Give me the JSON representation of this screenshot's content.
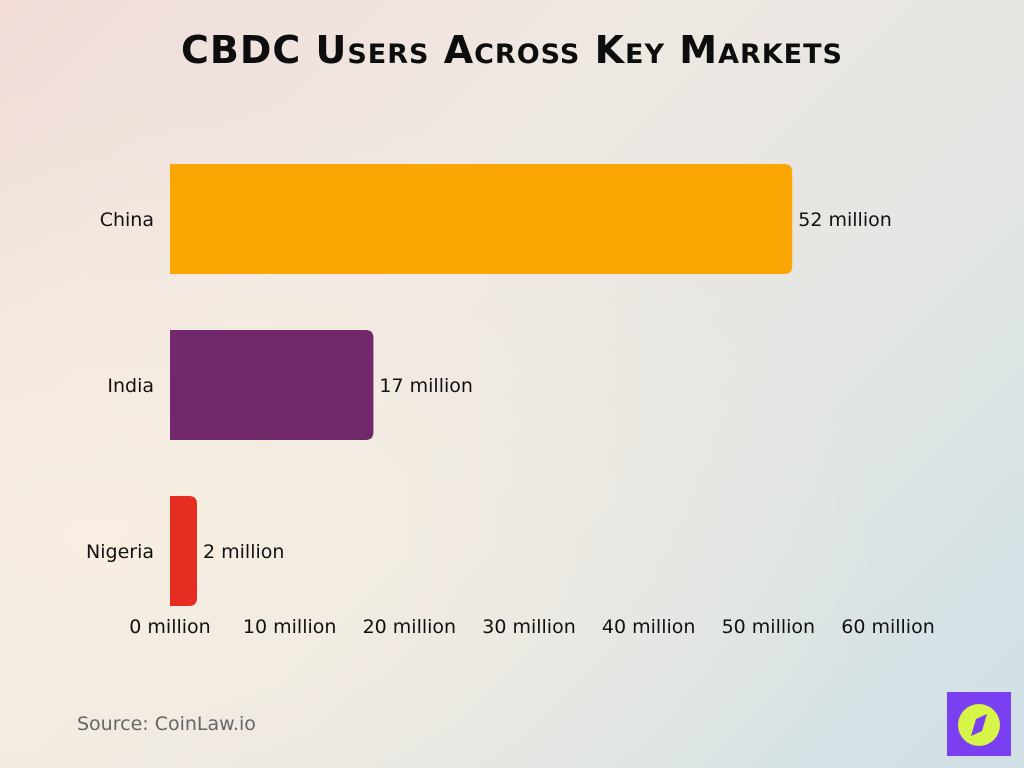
{
  "chart_data": {
    "type": "bar",
    "orientation": "horizontal",
    "title": "CBDC Users Across Key Markets",
    "categories": [
      "China",
      "India",
      "Nigeria"
    ],
    "values": [
      52,
      17,
      2
    ],
    "data_labels": [
      "52 million",
      "17 million",
      "2 million"
    ],
    "colors": [
      "#f9a602",
      "#72296b",
      "#e52d22"
    ],
    "xlim": [
      0,
      60
    ],
    "xticks": [
      0,
      10,
      20,
      30,
      40,
      50,
      60
    ],
    "xtick_labels": [
      "0 million",
      "10 million",
      "20 million",
      "30 million",
      "40 million",
      "50 million",
      "60 million"
    ],
    "xlabel": "",
    "ylabel": "",
    "grid": false,
    "legend": "none"
  },
  "source": "Source: CoinLaw.io",
  "logo": {
    "icon": "compass-icon",
    "bg_color": "#7b3ff2",
    "fg_color": "#d6f548"
  }
}
